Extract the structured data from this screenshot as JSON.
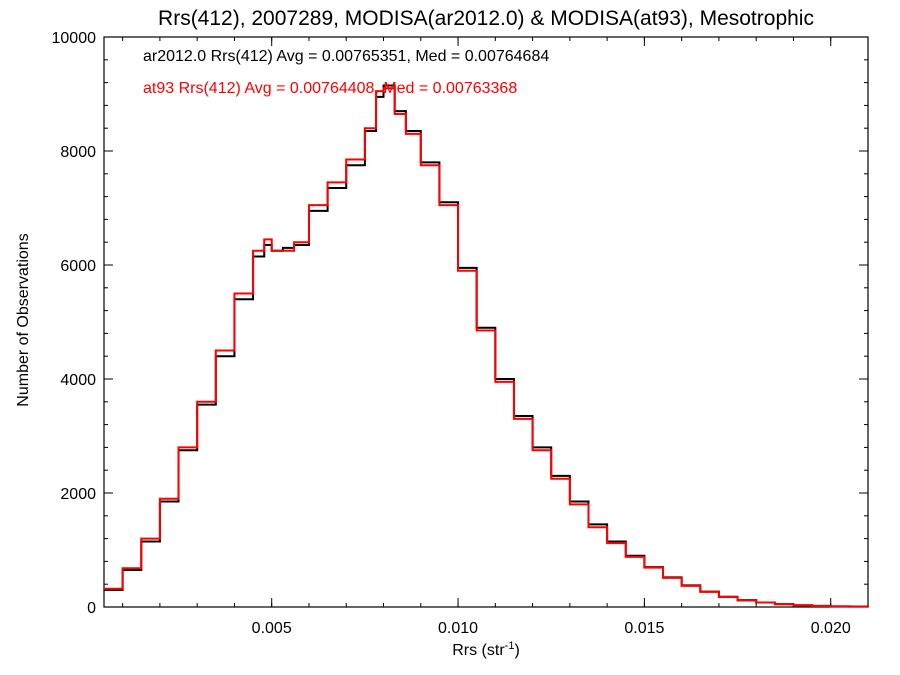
{
  "chart_data": {
    "type": "line",
    "title": "Rrs(412), 2007289, MODISA(ar2012.0) & MODISA(at93), Mesotrophic",
    "xlabel_main": "Rrs (str",
    "xlabel_sup": "-1",
    "xlabel_end": ")",
    "ylabel": "Number of Observations",
    "xlim": [
      0.0005,
      0.021
    ],
    "ylim": [
      0,
      10000
    ],
    "x_ticks": [
      {
        "value": 0.005,
        "label": "0.005"
      },
      {
        "value": 0.01,
        "label": "0.010"
      },
      {
        "value": 0.015,
        "label": "0.015"
      },
      {
        "value": 0.02,
        "label": "0.020"
      }
    ],
    "y_ticks": [
      {
        "value": 0,
        "label": "0"
      },
      {
        "value": 2000,
        "label": "2000"
      },
      {
        "value": 4000,
        "label": "4000"
      },
      {
        "value": 6000,
        "label": "6000"
      },
      {
        "value": 8000,
        "label": "8000"
      },
      {
        "value": 10000,
        "label": "10000"
      }
    ],
    "annotations": [
      {
        "text": "ar2012.0 Rrs(412) Avg = 0.00765351, Med = 0.00764684",
        "color": "#000000"
      },
      {
        "text": "at93 Rrs(412) Avg = 0.00764408, Med = 0.00763368",
        "color": "#ff0000"
      }
    ],
    "series": [
      {
        "color": "#000000",
        "x": [
          0.0005,
          0.001,
          0.0015,
          0.002,
          0.0025,
          0.003,
          0.0035,
          0.004,
          0.0045,
          0.0048,
          0.005,
          0.0053,
          0.0056,
          0.006,
          0.0065,
          0.007,
          0.0075,
          0.0078,
          0.008,
          0.0083,
          0.0086,
          0.009,
          0.0095,
          0.01,
          0.0105,
          0.011,
          0.0115,
          0.012,
          0.0125,
          0.013,
          0.0135,
          0.014,
          0.0145,
          0.015,
          0.0155,
          0.016,
          0.0165,
          0.017,
          0.0175,
          0.018,
          0.0185,
          0.019,
          0.0195,
          0.02,
          0.0205,
          0.021
        ],
        "y": [
          300,
          650,
          1150,
          1850,
          2750,
          3550,
          4400,
          5400,
          6150,
          6350,
          6250,
          6300,
          6350,
          6950,
          7350,
          7750,
          8350,
          8950,
          9150,
          8700,
          8350,
          7800,
          7100,
          5950,
          4900,
          4000,
          3350,
          2800,
          2300,
          1850,
          1450,
          1150,
          900,
          700,
          520,
          380,
          270,
          180,
          120,
          80,
          50,
          30,
          20,
          12,
          8,
          5
        ]
      },
      {
        "color": "#ff0000",
        "x": [
          0.0005,
          0.001,
          0.0015,
          0.002,
          0.0025,
          0.003,
          0.0035,
          0.004,
          0.0045,
          0.0048,
          0.005,
          0.0053,
          0.0056,
          0.006,
          0.0065,
          0.007,
          0.0075,
          0.0078,
          0.008,
          0.0083,
          0.0086,
          0.009,
          0.0095,
          0.01,
          0.0105,
          0.011,
          0.0115,
          0.012,
          0.0125,
          0.013,
          0.0135,
          0.014,
          0.0145,
          0.015,
          0.0155,
          0.016,
          0.0165,
          0.017,
          0.0175,
          0.018,
          0.0185,
          0.019,
          0.0195,
          0.02,
          0.0205,
          0.021
        ],
        "y": [
          320,
          680,
          1200,
          1900,
          2800,
          3600,
          4500,
          5500,
          6250,
          6450,
          6250,
          6250,
          6400,
          7050,
          7450,
          7850,
          8400,
          9050,
          9100,
          8650,
          8300,
          7750,
          7050,
          5900,
          4850,
          3950,
          3300,
          2750,
          2250,
          1800,
          1400,
          1120,
          880,
          690,
          510,
          370,
          265,
          175,
          115,
          78,
          48,
          30,
          18,
          11,
          7,
          4
        ]
      }
    ]
  }
}
